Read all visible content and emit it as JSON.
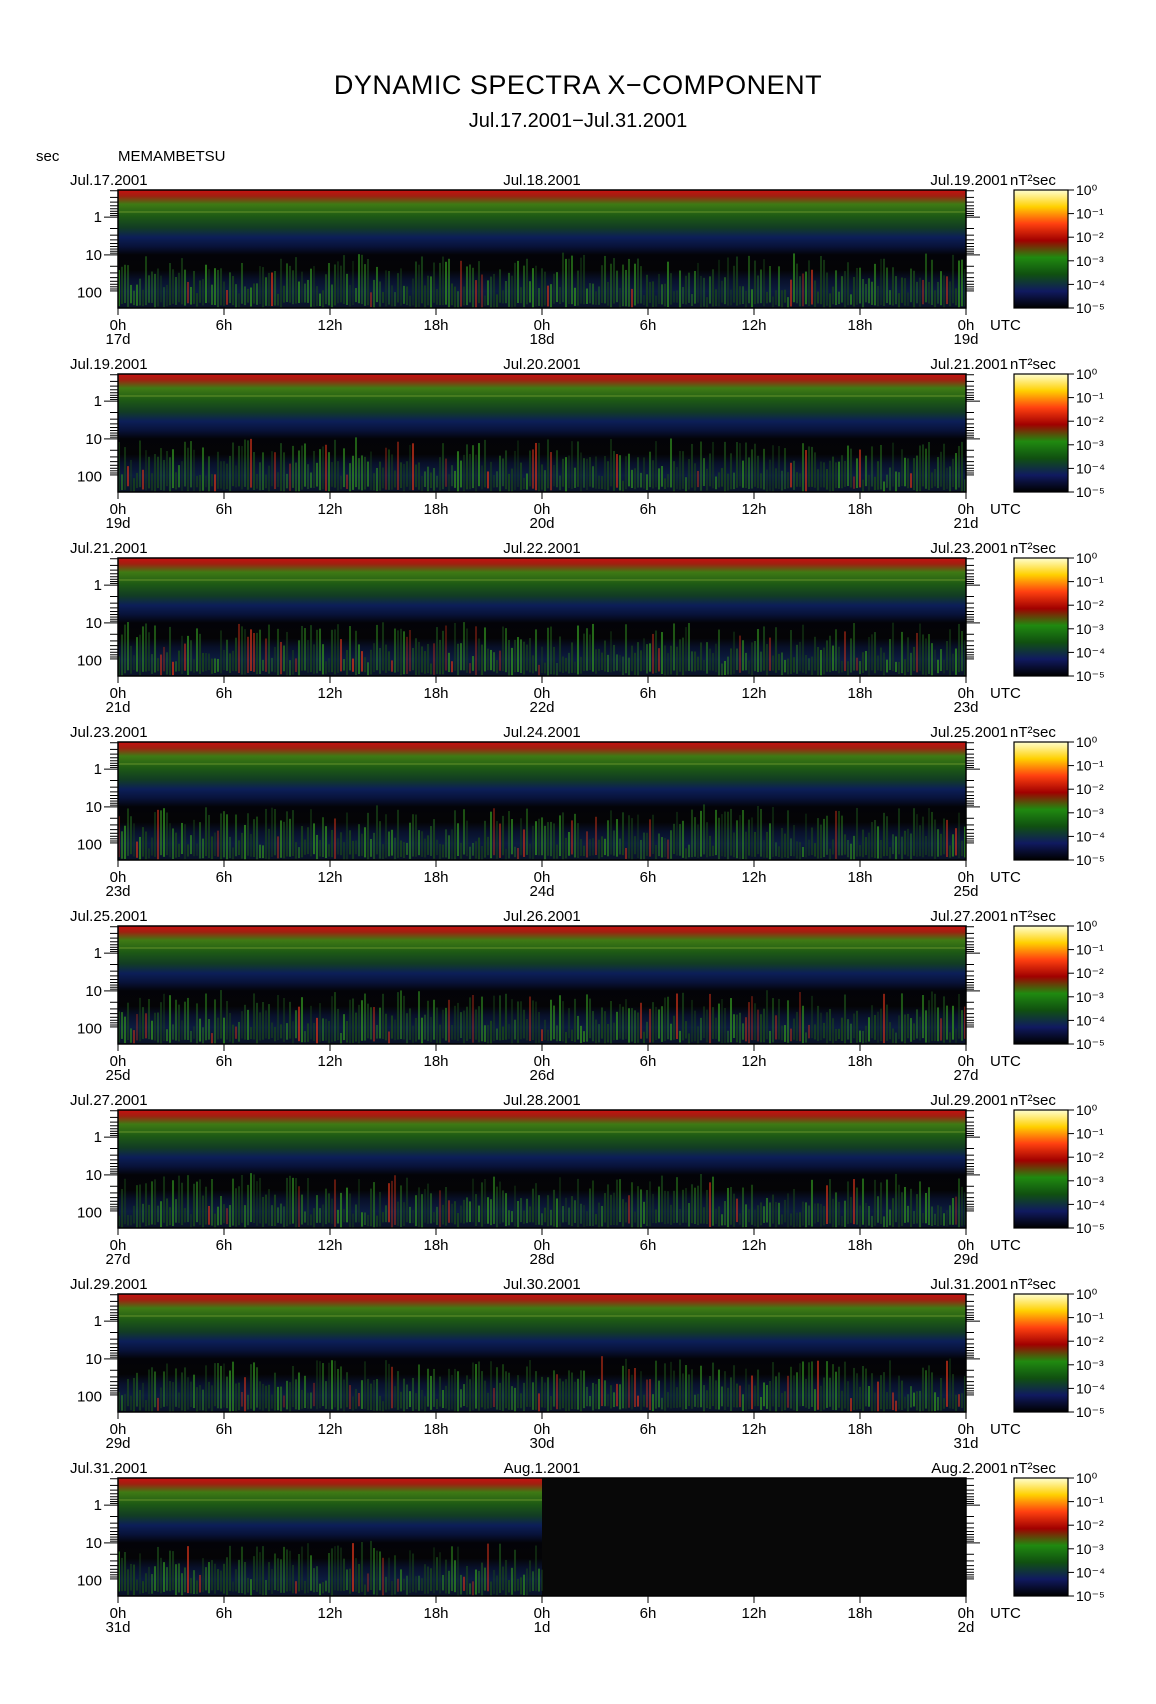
{
  "title": "DYNAMIC SPECTRA X−COMPONENT",
  "subtitle": "Jul.17.2001−Jul.31.2001",
  "y_unit_label": "sec",
  "station": "MEMAMBETSU",
  "colorbar_unit": "nT²sec",
  "chart_data": {
    "type": "heatmap",
    "title": "DYNAMIC SPECTRA X−COMPONENT",
    "subtitle": "Jul.17.2001−Jul.31.2001",
    "ylabel": "sec",
    "y_scale": "log",
    "y_ticks": [
      "1",
      "10",
      "100"
    ],
    "x_ticks": [
      "0h",
      "6h",
      "12h",
      "18h",
      "0h",
      "6h",
      "12h",
      "18h",
      "0h"
    ],
    "x_suffix": "UTC",
    "colorbar": {
      "unit": "nT²sec",
      "ticks": [
        "10⁰",
        "10⁻¹",
        "10⁻²",
        "10⁻³",
        "10⁻⁴",
        "10⁻⁵"
      ],
      "colors": [
        "#ffffd0",
        "#ffd000",
        "#ff4010",
        "#a00000",
        "#208a10",
        "#105010",
        "#101a60",
        "#000000"
      ]
    },
    "panels": [
      {
        "start_label": "Jul.17.2001",
        "mid_label": "Jul.18.2001",
        "end_label": "Jul.19.2001",
        "day_labels": [
          "17d",
          "18d",
          "19d"
        ]
      },
      {
        "start_label": "Jul.19.2001",
        "mid_label": "Jul.20.2001",
        "end_label": "Jul.21.2001",
        "day_labels": [
          "19d",
          "20d",
          "21d"
        ]
      },
      {
        "start_label": "Jul.21.2001",
        "mid_label": "Jul.22.2001",
        "end_label": "Jul.23.2001",
        "day_labels": [
          "21d",
          "22d",
          "23d"
        ]
      },
      {
        "start_label": "Jul.23.2001",
        "mid_label": "Jul.24.2001",
        "end_label": "Jul.25.2001",
        "day_labels": [
          "23d",
          "24d",
          "25d"
        ]
      },
      {
        "start_label": "Jul.25.2001",
        "mid_label": "Jul.26.2001",
        "end_label": "Jul.27.2001",
        "day_labels": [
          "25d",
          "26d",
          "27d"
        ]
      },
      {
        "start_label": "Jul.27.2001",
        "mid_label": "Jul.28.2001",
        "end_label": "Jul.29.2001",
        "day_labels": [
          "27d",
          "28d",
          "29d"
        ]
      },
      {
        "start_label": "Jul.29.2001",
        "mid_label": "Jul.30.2001",
        "end_label": "Jul.31.2001",
        "day_labels": [
          "29d",
          "30d",
          "31d"
        ]
      },
      {
        "start_label": "Jul.31.2001",
        "mid_label": "Aug.1.2001",
        "end_label": "Aug.2.2001",
        "day_labels": [
          "31d",
          "1d",
          "2d"
        ],
        "data_ends_at_hours": 24
      }
    ]
  }
}
